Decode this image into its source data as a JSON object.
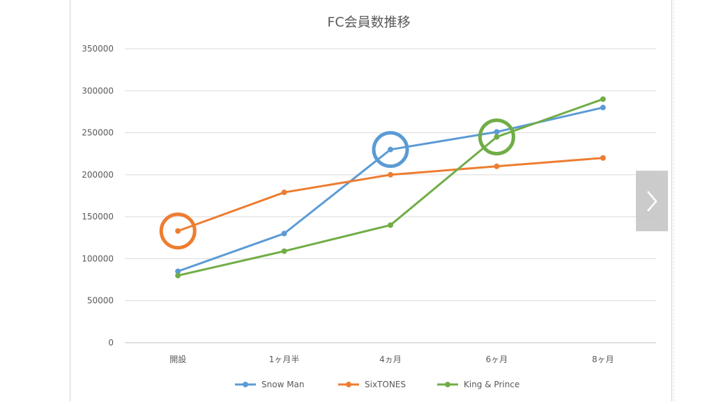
{
  "chart_data": {
    "type": "line",
    "title": "FC会員数推移",
    "categories": [
      "開設",
      "1ヶ月半",
      "4ヵ月",
      "6ヶ月",
      "8ヶ月"
    ],
    "series": [
      {
        "name": "Snow Man",
        "color": "#5b9bd5",
        "values": [
          85000,
          130000,
          230000,
          251000,
          280000
        ]
      },
      {
        "name": "SixTONES",
        "color": "#ed7d31",
        "values": [
          133000,
          179000,
          200000,
          210000,
          220000
        ]
      },
      {
        "name": "King & Prince",
        "color": "#70ad47",
        "values": [
          80000,
          109000,
          140000,
          245000,
          290000
        ]
      }
    ],
    "ylim": [
      0,
      350000
    ],
    "yticks": [
      "0",
      "50000",
      "100000",
      "150000",
      "200000",
      "250000",
      "300000",
      "350000"
    ],
    "grid": true,
    "legend_position": "bottom",
    "highlights": [
      {
        "series": "SixTONES",
        "category": "開設",
        "color": "#ed7d31"
      },
      {
        "series": "Snow Man",
        "category": "4ヵ月",
        "color": "#5b9bd5"
      },
      {
        "series": "King & Prince",
        "category": "6ヶ月",
        "color": "#70ad47"
      }
    ]
  },
  "nav": {
    "next_icon": "chevron-right-icon"
  }
}
